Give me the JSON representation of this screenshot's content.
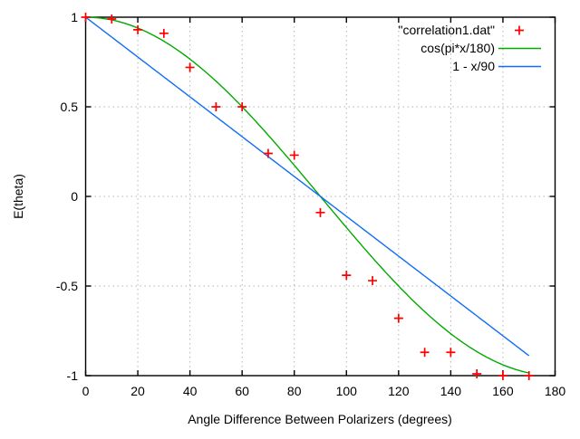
{
  "figure": {
    "background": "#ffffff",
    "border_color": "#000000",
    "grid_color": "#b4b4b4",
    "text_color": "#000000"
  },
  "chart_data": {
    "type": "scatter",
    "title": "",
    "xlabel": "Angle Difference Between Polarizers (degrees)",
    "ylabel": "E(theta)",
    "xlim": [
      0,
      180
    ],
    "ylim": [
      -1,
      1
    ],
    "xticks": [
      0,
      20,
      40,
      60,
      80,
      100,
      120,
      140,
      160,
      180
    ],
    "yticks": [
      -1,
      -0.5,
      0,
      0.5,
      1
    ],
    "grid": true,
    "legend_position": "top-right-inside",
    "series": [
      {
        "name": "\"correlation1.dat\"",
        "type": "points",
        "marker": "plus",
        "color": "#ff0000",
        "x": [
          0,
          10,
          20,
          30,
          40,
          50,
          60,
          70,
          80,
          90,
          100,
          110,
          120,
          130,
          140,
          150,
          160,
          170
        ],
        "y": [
          1.0,
          0.99,
          0.93,
          0.91,
          0.72,
          0.5,
          0.5,
          0.24,
          0.23,
          -0.09,
          -0.44,
          -0.47,
          -0.68,
          -0.87,
          -0.87,
          -0.99,
          -1.0,
          -1.0
        ]
      },
      {
        "name": "cos(pi*x/180)",
        "type": "line",
        "color": "#00aa00",
        "fn": "cos_pi_x_over_180",
        "x_range": [
          0,
          170
        ]
      },
      {
        "name": "1 - x/90",
        "type": "line",
        "color": "#0d6ef5",
        "fn": "one_minus_x_over_90",
        "x_range": [
          0,
          170
        ]
      }
    ]
  }
}
